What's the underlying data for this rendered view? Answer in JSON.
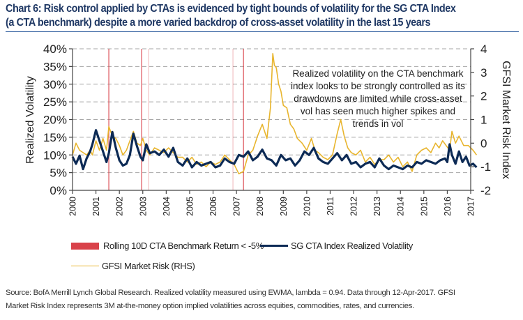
{
  "title_lines": [
    "Chart 6: Risk control applied by CTAs is evidenced by tight bounds of volatility for the SG CTA Index",
    "(a CTA benchmark) despite a more varied backdrop of cross-asset volatility in the last 15 years"
  ],
  "chart_data": {
    "type": "line",
    "title": "Chart 6: Risk control applied by CTAs is evidenced by tight bounds of volatility for the SG CTA Index (a CTA benchmark) despite a more varied backdrop of cross-asset volatility in the last 15 years",
    "xlabel": "",
    "ylabel": "Realized Volatility",
    "y2label": "GFSI Market Risk Index",
    "xlim": [
      2000,
      2017.3
    ],
    "ylim": [
      0,
      40
    ],
    "y2lim": [
      -2,
      4
    ],
    "grid": "horizontal dashed",
    "x_ticks": [
      "2000",
      "2001",
      "2002",
      "2003",
      "2004",
      "2005",
      "2006",
      "2007",
      "2008",
      "2009",
      "2010",
      "2011",
      "2012",
      "2013",
      "2014",
      "2015",
      "2016",
      "2017"
    ],
    "y_ticks": [
      "0%",
      "5%",
      "10%",
      "15%",
      "20%",
      "25%",
      "30%",
      "35%",
      "40%"
    ],
    "y2_ticks": [
      "-2",
      "-1",
      "0",
      "1",
      "2",
      "3",
      "4"
    ],
    "annotation": [
      "Realized volatility on the CTA benchmark",
      "index looks to be strongly controlled as its",
      "drawdowns are limited while cross-asset",
      "vol has seen much higher spikes and",
      "trends in vol"
    ],
    "drawdown_events": [
      2001.55,
      2002.95,
      2003.25,
      2006.85,
      2007.3
    ],
    "drawdown_event_label": "Rolling 10D CTA Benchmark Return < -5%",
    "series": [
      {
        "name": "SG CTA Index Realized Volatility",
        "axis": "left",
        "color": "#0c2a55",
        "x": [
          2000.0,
          2000.15,
          2000.3,
          2000.45,
          2000.6,
          2000.75,
          2000.85,
          2001.0,
          2001.15,
          2001.3,
          2001.45,
          2001.55,
          2001.7,
          2001.85,
          2002.0,
          2002.15,
          2002.3,
          2002.45,
          2002.6,
          2002.75,
          2002.9,
          2003.0,
          2003.15,
          2003.3,
          2003.5,
          2003.7,
          2003.9,
          2004.1,
          2004.3,
          2004.5,
          2004.7,
          2004.9,
          2005.1,
          2005.3,
          2005.5,
          2005.7,
          2005.9,
          2006.1,
          2006.3,
          2006.5,
          2006.7,
          2006.9,
          2007.1,
          2007.3,
          2007.5,
          2007.7,
          2007.9,
          2008.1,
          2008.3,
          2008.5,
          2008.7,
          2008.9,
          2009.1,
          2009.3,
          2009.5,
          2009.7,
          2009.9,
          2010.1,
          2010.3,
          2010.5,
          2010.7,
          2010.9,
          2011.1,
          2011.3,
          2011.5,
          2011.7,
          2011.9,
          2012.1,
          2012.3,
          2012.5,
          2012.7,
          2012.9,
          2013.1,
          2013.3,
          2013.5,
          2013.7,
          2013.9,
          2014.1,
          2014.3,
          2014.5,
          2014.7,
          2014.9,
          2015.1,
          2015.3,
          2015.5,
          2015.7,
          2015.9,
          2016.0,
          2016.1,
          2016.2,
          2016.35,
          2016.5,
          2016.65,
          2016.8,
          2016.95,
          2017.1,
          2017.25
        ],
        "y": [
          9.5,
          7.5,
          9.8,
          6.0,
          9.0,
          11.0,
          13.0,
          17.0,
          14.0,
          11.0,
          8.0,
          10.5,
          16.5,
          12.0,
          8.5,
          7.0,
          7.5,
          10.0,
          16.0,
          12.5,
          9.5,
          8.5,
          13.0,
          10.5,
          11.0,
          10.0,
          11.5,
          9.5,
          12.0,
          8.0,
          7.0,
          9.0,
          6.5,
          8.0,
          7.0,
          7.5,
          8.0,
          6.5,
          7.0,
          9.0,
          8.0,
          7.5,
          10.0,
          9.5,
          11.0,
          8.5,
          9.5,
          11.5,
          9.0,
          8.5,
          7.0,
          10.0,
          8.5,
          9.0,
          7.0,
          8.5,
          11.0,
          10.0,
          12.0,
          9.0,
          8.0,
          7.5,
          9.0,
          10.5,
          8.5,
          10.0,
          7.5,
          8.0,
          6.5,
          7.5,
          8.0,
          6.5,
          9.0,
          7.0,
          6.0,
          7.0,
          6.5,
          6.0,
          7.0,
          6.5,
          8.0,
          7.5,
          8.5,
          8.0,
          7.5,
          8.5,
          9.0,
          8.0,
          13.0,
          10.0,
          7.5,
          11.0,
          8.0,
          9.5,
          7.0,
          7.5,
          6.5
        ]
      },
      {
        "name": "GFSI Market Risk (RHS)",
        "axis": "right",
        "color": "#e8b52e",
        "x": [
          2000.0,
          2000.15,
          2000.3,
          2000.45,
          2000.6,
          2000.75,
          2000.85,
          2001.0,
          2001.15,
          2001.3,
          2001.45,
          2001.55,
          2001.7,
          2001.85,
          2002.0,
          2002.15,
          2002.3,
          2002.45,
          2002.6,
          2002.75,
          2002.9,
          2003.0,
          2003.15,
          2003.3,
          2003.5,
          2003.7,
          2003.9,
          2004.1,
          2004.3,
          2004.5,
          2004.7,
          2004.9,
          2005.1,
          2005.3,
          2005.5,
          2005.7,
          2005.9,
          2006.1,
          2006.3,
          2006.5,
          2006.7,
          2006.9,
          2007.1,
          2007.3,
          2007.5,
          2007.7,
          2007.9,
          2008.1,
          2008.3,
          2008.45,
          2008.55,
          2008.62,
          2008.7,
          2008.8,
          2008.9,
          2009.0,
          2009.15,
          2009.3,
          2009.45,
          2009.6,
          2009.8,
          2010.0,
          2010.2,
          2010.35,
          2010.5,
          2010.7,
          2010.9,
          2011.1,
          2011.3,
          2011.45,
          2011.6,
          2011.75,
          2011.9,
          2012.1,
          2012.3,
          2012.5,
          2012.7,
          2012.9,
          2013.1,
          2013.3,
          2013.5,
          2013.7,
          2013.9,
          2014.1,
          2014.3,
          2014.5,
          2014.7,
          2014.9,
          2015.1,
          2015.3,
          2015.5,
          2015.65,
          2015.8,
          2015.95,
          2016.1,
          2016.2,
          2016.35,
          2016.5,
          2016.7,
          2016.9,
          2017.1,
          2017.25
        ],
        "y": [
          -0.5,
          0.0,
          -0.3,
          -0.4,
          -0.5,
          -0.3,
          -0.5,
          0.1,
          -0.3,
          0.2,
          -0.3,
          0.7,
          0.3,
          0.2,
          -0.1,
          -0.5,
          -0.3,
          0.1,
          0.5,
          0.0,
          -0.1,
          0.2,
          -0.3,
          -0.5,
          -0.2,
          -0.3,
          -0.4,
          -0.2,
          -0.4,
          -0.6,
          -0.6,
          -0.8,
          -0.6,
          -0.9,
          -0.8,
          -1.0,
          -0.8,
          -0.9,
          -0.8,
          -0.5,
          -0.7,
          -0.9,
          -1.3,
          -1.2,
          -0.5,
          -0.3,
          0.3,
          0.8,
          0.2,
          1.5,
          3.8,
          3.3,
          3.2,
          2.5,
          2.2,
          1.6,
          1.5,
          0.8,
          0.6,
          0.2,
          0.0,
          -0.3,
          0.2,
          -0.3,
          -0.4,
          -0.6,
          -0.7,
          -0.5,
          0.4,
          1.0,
          0.3,
          -0.2,
          -0.4,
          -0.5,
          -0.3,
          -0.8,
          -0.6,
          -0.9,
          -0.7,
          -0.7,
          -0.5,
          -0.8,
          -0.6,
          -1.0,
          -0.8,
          -1.2,
          -0.5,
          -0.3,
          -0.2,
          -0.4,
          0.0,
          -0.2,
          0.1,
          -0.1,
          -0.3,
          0.5,
          0.0,
          0.3,
          -0.1,
          -0.1,
          -0.3,
          -0.5
        ]
      }
    ],
    "legend": {
      "placement": "bottom",
      "entries": [
        {
          "label": "Rolling 10D CTA Benchmark Return < -5%",
          "kind": "bar",
          "color": "#d9424a"
        },
        {
          "label": "SG CTA Index Realized Volatility",
          "kind": "line",
          "color": "#0c2a55"
        },
        {
          "label": "GFSI Market Risk (RHS)",
          "kind": "line",
          "color": "#e8b52e"
        }
      ]
    }
  },
  "colors": {
    "title": "#1f3864",
    "title_rule": "#2e5d9e",
    "grid": "#a6a6a6",
    "event_line": "#d9424a"
  },
  "source_lines": [
    "Source: BofA Merrill Lynch Global Research.  Realized volatility measured using EWMA, lambda = 0.94.  Data through 12-Apr-2017.  GFSI",
    "Market Risk Index represents 3M at-the-money option implied volatilities across equities, commodities, rates, and currencies."
  ]
}
